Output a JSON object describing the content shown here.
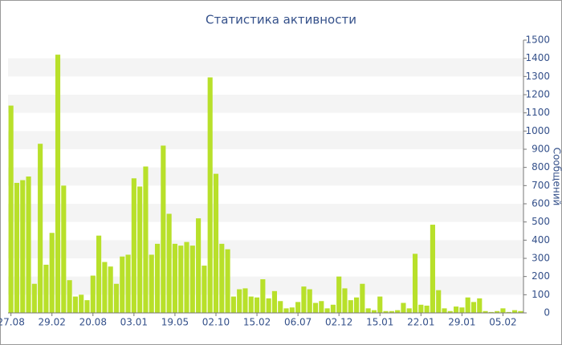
{
  "chart_data": {
    "type": "bar",
    "title": "Статистика активности",
    "y_label": "Сообщений",
    "color": "#b8e02a",
    "categories": [
      "27.08",
      null,
      null,
      null,
      null,
      null,
      null,
      "29.02",
      null,
      null,
      null,
      null,
      null,
      null,
      "20.08",
      null,
      null,
      null,
      null,
      null,
      null,
      "03.01",
      null,
      null,
      null,
      null,
      null,
      null,
      "19.05",
      null,
      null,
      null,
      null,
      null,
      null,
      "02.10",
      null,
      null,
      null,
      null,
      null,
      null,
      "15.02",
      null,
      null,
      null,
      null,
      null,
      null,
      "06.07",
      null,
      null,
      null,
      null,
      null,
      null,
      "02.12",
      null,
      null,
      null,
      null,
      null,
      null,
      "15.01",
      null,
      null,
      null,
      null,
      null,
      null,
      "22.01",
      null,
      null,
      null,
      null,
      null,
      null,
      "29.01",
      null,
      null,
      null,
      null,
      null,
      null,
      "05.02",
      null,
      null,
      null
    ],
    "values": [
      1140,
      715,
      730,
      750,
      160,
      930,
      265,
      440,
      1420,
      700,
      180,
      90,
      100,
      70,
      205,
      425,
      280,
      255,
      160,
      310,
      320,
      740,
      695,
      805,
      320,
      380,
      920,
      545,
      380,
      370,
      390,
      370,
      520,
      260,
      1295,
      765,
      380,
      350,
      90,
      130,
      135,
      90,
      85,
      185,
      80,
      120,
      65,
      25,
      30,
      60,
      145,
      130,
      55,
      65,
      25,
      45,
      200,
      135,
      70,
      85,
      160,
      25,
      15,
      90,
      10,
      10,
      15,
      55,
      25,
      325,
      45,
      40,
      485,
      125,
      25,
      10,
      35,
      30,
      85,
      60,
      80,
      10,
      5,
      10,
      25,
      5,
      15,
      10
    ],
    "ylim": [
      0,
      1500
    ],
    "yticks": [
      0,
      100,
      200,
      300,
      400,
      500,
      600,
      700,
      800,
      900,
      1000,
      1100,
      1200,
      1300,
      1400,
      1500
    ],
    "grid": true
  }
}
